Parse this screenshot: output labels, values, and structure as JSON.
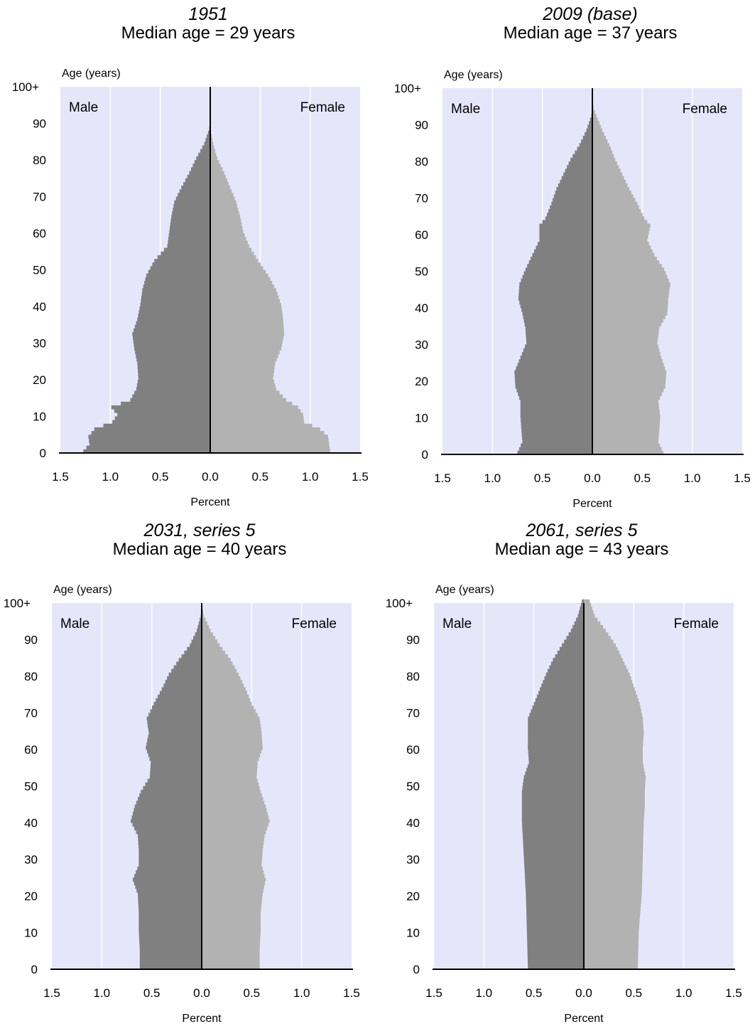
{
  "chart_data": [
    {
      "type": "bar",
      "orientation": "horizontal",
      "title": "1951",
      "subtitle": "Median age = 29 years",
      "xlabel": "Percent",
      "ylabel": "Age (years)",
      "left_label": "Male",
      "right_label": "Female",
      "xlim": [
        -1.5,
        1.5
      ],
      "ylim": [
        0,
        100
      ],
      "x_ticks": [
        "1.5",
        "1.0",
        "0.5",
        "0.0",
        "0.5",
        "1.0",
        "1.5"
      ],
      "y_ticks": [
        "0",
        "10",
        "20",
        "30",
        "40",
        "50",
        "60",
        "70",
        "80",
        "90",
        "100+"
      ],
      "colors": {
        "plot_background": "#e6e6fb",
        "male": "#808080",
        "female": "#b2b2b2",
        "gridline": "#ffffff"
      },
      "series": [
        {
          "name": "Male",
          "age_points": [
            0,
            2,
            4,
            6,
            8,
            10,
            12,
            14,
            17,
            20,
            24,
            28,
            32,
            36,
            40,
            44,
            48,
            52,
            56,
            60,
            64,
            68,
            72,
            76,
            80,
            84,
            88,
            91
          ],
          "values": [
            1.27,
            1.21,
            1.22,
            1.16,
            0.98,
            0.93,
            0.99,
            0.8,
            0.74,
            0.72,
            0.73,
            0.76,
            0.78,
            0.73,
            0.7,
            0.68,
            0.64,
            0.56,
            0.43,
            0.41,
            0.39,
            0.36,
            0.29,
            0.21,
            0.14,
            0.06,
            0.01,
            0
          ]
        },
        {
          "name": "Female",
          "age_points": [
            0,
            2,
            4,
            6,
            8,
            10,
            12,
            14,
            17,
            20,
            24,
            28,
            32,
            36,
            40,
            44,
            48,
            52,
            56,
            60,
            64,
            68,
            72,
            76,
            80,
            84,
            88,
            91
          ],
          "values": [
            1.2,
            1.19,
            1.18,
            1.1,
            0.94,
            0.93,
            0.88,
            0.76,
            0.66,
            0.63,
            0.65,
            0.71,
            0.74,
            0.73,
            0.71,
            0.66,
            0.58,
            0.48,
            0.39,
            0.33,
            0.3,
            0.26,
            0.2,
            0.14,
            0.07,
            0.03,
            0.0,
            0
          ]
        }
      ]
    },
    {
      "type": "bar",
      "orientation": "horizontal",
      "title": "2009 (base)",
      "subtitle": "Median age = 37 years",
      "xlabel": "Percent",
      "ylabel": "Age (years)",
      "left_label": "Male",
      "right_label": "Female",
      "xlim": [
        -1.5,
        1.5
      ],
      "ylim": [
        0,
        100
      ],
      "x_ticks": [
        "1.5",
        "1.0",
        "0.5",
        "0.0",
        "0.5",
        "1.0",
        "1.5"
      ],
      "y_ticks": [
        "0",
        "10",
        "20",
        "30",
        "40",
        "50",
        "60",
        "70",
        "80",
        "90",
        "100+"
      ],
      "colors": {
        "plot_background": "#e6e6fb",
        "male": "#808080",
        "female": "#b2b2b2",
        "gridline": "#ffffff"
      },
      "series": [
        {
          "name": "Male",
          "age_points": [
            0,
            3,
            6,
            10,
            14,
            18,
            22,
            26,
            30,
            34,
            38,
            42,
            46,
            50,
            54,
            58,
            62,
            64,
            68,
            72,
            76,
            80,
            84,
            88,
            92,
            95
          ],
          "values": [
            0.75,
            0.7,
            0.71,
            0.72,
            0.72,
            0.77,
            0.78,
            0.72,
            0.66,
            0.67,
            0.7,
            0.74,
            0.73,
            0.67,
            0.6,
            0.53,
            0.53,
            0.47,
            0.41,
            0.36,
            0.29,
            0.22,
            0.13,
            0.06,
            0.01,
            0
          ]
        },
        {
          "name": "Female",
          "age_points": [
            0,
            3,
            6,
            10,
            14,
            18,
            22,
            26,
            30,
            34,
            38,
            42,
            46,
            50,
            54,
            58,
            62,
            64,
            68,
            72,
            76,
            80,
            84,
            88,
            92,
            95
          ],
          "values": [
            0.71,
            0.66,
            0.67,
            0.68,
            0.66,
            0.73,
            0.74,
            0.69,
            0.65,
            0.67,
            0.75,
            0.76,
            0.78,
            0.72,
            0.62,
            0.55,
            0.58,
            0.52,
            0.45,
            0.37,
            0.3,
            0.23,
            0.17,
            0.1,
            0.04,
            0
          ]
        }
      ]
    },
    {
      "type": "bar",
      "orientation": "horizontal",
      "title": "2031, series 5",
      "subtitle": "Median age = 40 years",
      "xlabel": "Percent",
      "ylabel": "Age (years)",
      "left_label": "Male",
      "right_label": "Female",
      "xlim": [
        -1.5,
        1.5
      ],
      "ylim": [
        0,
        100
      ],
      "x_ticks": [
        "1.5",
        "1.0",
        "0.5",
        "0.0",
        "0.5",
        "1.0",
        "1.5"
      ],
      "y_ticks": [
        "0",
        "10",
        "20",
        "30",
        "40",
        "50",
        "60",
        "70",
        "80",
        "90",
        "100+"
      ],
      "colors": {
        "plot_background": "#e6e6fb",
        "male": "#808080",
        "female": "#b2b2b2",
        "gridline": "#ffffff"
      },
      "series": [
        {
          "name": "Male",
          "age_points": [
            0,
            5,
            10,
            15,
            20,
            24,
            28,
            32,
            36,
            40,
            44,
            48,
            52,
            56,
            60,
            64,
            68,
            72,
            76,
            80,
            84,
            88,
            92,
            96,
            100
          ],
          "values": [
            0.62,
            0.62,
            0.63,
            0.63,
            0.64,
            0.69,
            0.63,
            0.63,
            0.64,
            0.71,
            0.67,
            0.61,
            0.52,
            0.51,
            0.56,
            0.53,
            0.55,
            0.48,
            0.4,
            0.33,
            0.23,
            0.12,
            0.05,
            0.01,
            0
          ]
        },
        {
          "name": "Female",
          "age_points": [
            0,
            5,
            10,
            15,
            20,
            24,
            28,
            32,
            36,
            40,
            44,
            48,
            52,
            56,
            60,
            64,
            68,
            72,
            76,
            80,
            84,
            88,
            92,
            96,
            100
          ],
          "values": [
            0.58,
            0.58,
            0.59,
            0.59,
            0.61,
            0.64,
            0.6,
            0.61,
            0.63,
            0.68,
            0.64,
            0.59,
            0.55,
            0.56,
            0.61,
            0.6,
            0.58,
            0.5,
            0.44,
            0.37,
            0.29,
            0.18,
            0.09,
            0.02,
            0
          ]
        }
      ]
    },
    {
      "type": "bar",
      "orientation": "horizontal",
      "title": "2061, series 5",
      "subtitle": "Median age = 43 years",
      "xlabel": "Percent",
      "ylabel": "Age (years)",
      "left_label": "Male",
      "right_label": "Female",
      "xlim": [
        -1.5,
        1.5
      ],
      "ylim": [
        0,
        100
      ],
      "x_ticks": [
        "1.5",
        "1.0",
        "0.5",
        "0.0",
        "0.5",
        "1.0",
        "1.5"
      ],
      "y_ticks": [
        "0",
        "10",
        "20",
        "30",
        "40",
        "50",
        "60",
        "70",
        "80",
        "90",
        "100+"
      ],
      "colors": {
        "plot_background": "#e6e6fb",
        "male": "#808080",
        "female": "#b2b2b2",
        "gridline": "#ffffff"
      },
      "series": [
        {
          "name": "Male",
          "age_points": [
            0,
            10,
            20,
            30,
            40,
            44,
            48,
            52,
            56,
            60,
            64,
            68,
            72,
            76,
            80,
            84,
            88,
            92,
            96,
            100
          ],
          "values": [
            0.56,
            0.57,
            0.58,
            0.6,
            0.62,
            0.62,
            0.62,
            0.6,
            0.55,
            0.56,
            0.56,
            0.56,
            0.5,
            0.44,
            0.38,
            0.31,
            0.22,
            0.13,
            0.06,
            0.02
          ]
        },
        {
          "name": "Female",
          "age_points": [
            0,
            10,
            20,
            30,
            40,
            44,
            48,
            52,
            56,
            60,
            64,
            68,
            72,
            76,
            80,
            84,
            88,
            92,
            96,
            100
          ],
          "values": [
            0.54,
            0.55,
            0.58,
            0.59,
            0.6,
            0.61,
            0.61,
            0.62,
            0.59,
            0.59,
            0.6,
            0.59,
            0.56,
            0.51,
            0.46,
            0.39,
            0.32,
            0.22,
            0.11,
            0.06
          ]
        }
      ]
    }
  ]
}
